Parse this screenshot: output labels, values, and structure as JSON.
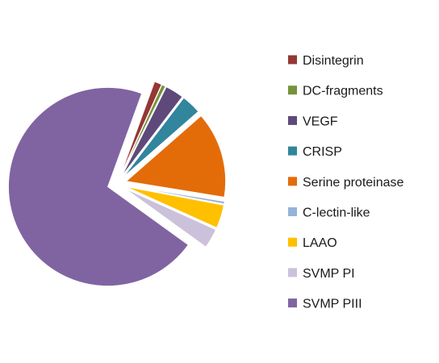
{
  "chart_data": {
    "type": "pie",
    "exploded": true,
    "legend_position": "right",
    "slices": [
      {
        "label": "Disintegrin",
        "value": 1.2,
        "color": "#953735"
      },
      {
        "label": "DC-fragments",
        "value": 0.6,
        "color": "#76923c"
      },
      {
        "label": "VEGF",
        "value": 3.0,
        "color": "#5f497a"
      },
      {
        "label": "CRISP",
        "value": 3.2,
        "color": "#31859c"
      },
      {
        "label": "Serine proteinase",
        "value": 14.0,
        "color": "#e36c09"
      },
      {
        "label": "C-lectin-like",
        "value": 0.4,
        "color": "#95b3d7"
      },
      {
        "label": "LAAO",
        "value": 3.8,
        "color": "#ffc000"
      },
      {
        "label": "SVMP PI",
        "value": 3.2,
        "color": "#ccc1da"
      },
      {
        "label": "SVMP PIII",
        "value": 70.6,
        "color": "#8064a2"
      }
    ]
  }
}
